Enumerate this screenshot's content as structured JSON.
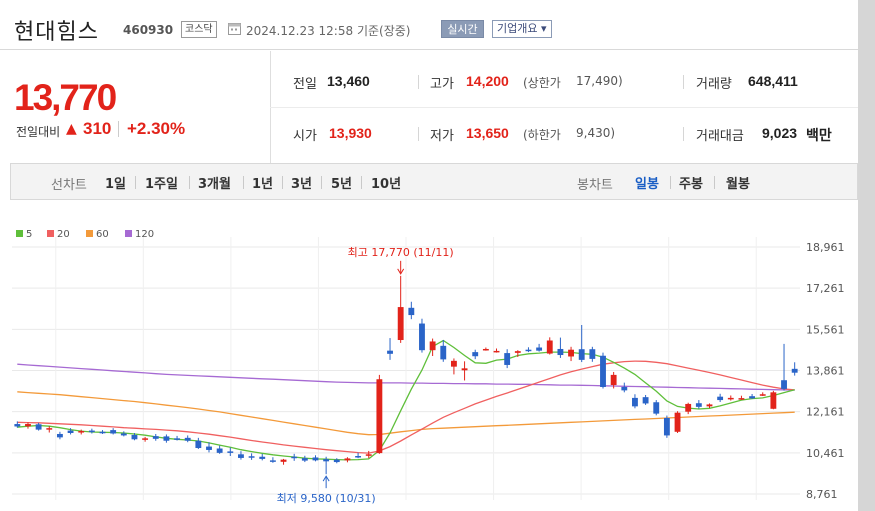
{
  "header": {
    "stock_name": "현대힘스",
    "stock_code": "460930",
    "market": "코스닥",
    "datetime": "2024.12.23 12:58",
    "basis": "기준(장중)",
    "realtime_label": "실시간",
    "overview_label": "기업개요 ▾"
  },
  "summary": {
    "price": "13,770",
    "change_label": "전일대비",
    "change_arrow": "▲",
    "change_value": "310",
    "change_rate": "+2.30%",
    "stats": {
      "prev_close_label": "전일",
      "prev_close": "13,460",
      "high_label": "고가",
      "high": "14,200",
      "upper_limit_label": "(상한가",
      "upper_limit": "17,490)",
      "volume_label": "거래량",
      "volume": "648,411",
      "open_label": "시가",
      "open": "13,930",
      "low_label": "저가",
      "low": "13,650",
      "lower_limit_label": "(하한가",
      "lower_limit": "9,430)",
      "amount_label": "거래대금",
      "amount": "9,023",
      "amount_unit": "백만"
    }
  },
  "toolbar": {
    "line_chart_label": "선차트",
    "periods": [
      "1일",
      "1주일",
      "3개월",
      "1년",
      "3년",
      "5년",
      "10년"
    ],
    "candle_label": "봉차트",
    "candle_periods": [
      "일봉",
      "주봉",
      "월봉"
    ],
    "active_candle": "일봉"
  },
  "colors": {
    "up": "#e2231a",
    "down": "#2a64c8",
    "ma5": "#5fbf3a",
    "ma20": "#f06060",
    "ma60": "#f39a3a",
    "ma120": "#a66ad3"
  },
  "chart_data": {
    "type": "candlestick",
    "legend": [
      {
        "name": "5",
        "color": "#5fbf3a"
      },
      {
        "name": "20",
        "color": "#f06060"
      },
      {
        "name": "60",
        "color": "#f39a3a"
      },
      {
        "name": "120",
        "color": "#a66ad3"
      }
    ],
    "y_ticks": [
      "18,961",
      "17,261",
      "15,561",
      "13,861",
      "12,161",
      "10,461",
      "8,761"
    ],
    "ylim": [
      8761,
      18961
    ],
    "annotations": {
      "high": "최고 17,770 (11/11)",
      "low": "최저 9,580 (10/31)"
    },
    "candles": [
      {
        "o": 11650,
        "h": 11760,
        "l": 11500,
        "c": 11550
      },
      {
        "o": 11560,
        "h": 11720,
        "l": 11460,
        "c": 11650
      },
      {
        "o": 11640,
        "h": 11700,
        "l": 11380,
        "c": 11420
      },
      {
        "o": 11420,
        "h": 11560,
        "l": 11300,
        "c": 11480
      },
      {
        "o": 11240,
        "h": 11330,
        "l": 11020,
        "c": 11100
      },
      {
        "o": 11380,
        "h": 11480,
        "l": 11220,
        "c": 11280
      },
      {
        "o": 11300,
        "h": 11420,
        "l": 11220,
        "c": 11360
      },
      {
        "o": 11380,
        "h": 11460,
        "l": 11260,
        "c": 11330
      },
      {
        "o": 11330,
        "h": 11400,
        "l": 11240,
        "c": 11280
      },
      {
        "o": 11400,
        "h": 11480,
        "l": 11220,
        "c": 11260
      },
      {
        "o": 11260,
        "h": 11350,
        "l": 11140,
        "c": 11180
      },
      {
        "o": 11200,
        "h": 11280,
        "l": 10980,
        "c": 11020
      },
      {
        "o": 11020,
        "h": 11120,
        "l": 10920,
        "c": 11060
      },
      {
        "o": 11150,
        "h": 11240,
        "l": 10960,
        "c": 11040
      },
      {
        "o": 11140,
        "h": 11220,
        "l": 10880,
        "c": 10960
      },
      {
        "o": 11060,
        "h": 11160,
        "l": 10970,
        "c": 11000
      },
      {
        "o": 11080,
        "h": 11180,
        "l": 10900,
        "c": 10960
      },
      {
        "o": 10960,
        "h": 11080,
        "l": 10620,
        "c": 10660
      },
      {
        "o": 10720,
        "h": 10900,
        "l": 10480,
        "c": 10580
      },
      {
        "o": 10640,
        "h": 10760,
        "l": 10420,
        "c": 10460
      },
      {
        "o": 10520,
        "h": 10680,
        "l": 10330,
        "c": 10460
      },
      {
        "o": 10400,
        "h": 10530,
        "l": 10180,
        "c": 10250
      },
      {
        "o": 10320,
        "h": 10440,
        "l": 10170,
        "c": 10260
      },
      {
        "o": 10300,
        "h": 10420,
        "l": 10150,
        "c": 10210
      },
      {
        "o": 10150,
        "h": 10280,
        "l": 10050,
        "c": 10100
      },
      {
        "o": 10090,
        "h": 10210,
        "l": 9970,
        "c": 10180
      },
      {
        "o": 10300,
        "h": 10420,
        "l": 10130,
        "c": 10240
      },
      {
        "o": 10240,
        "h": 10340,
        "l": 10080,
        "c": 10140
      },
      {
        "o": 10270,
        "h": 10360,
        "l": 10110,
        "c": 10150
      },
      {
        "o": 10200,
        "h": 10300,
        "l": 9580,
        "c": 10110
      },
      {
        "o": 10180,
        "h": 10240,
        "l": 10030,
        "c": 10080
      },
      {
        "o": 10150,
        "h": 10280,
        "l": 10070,
        "c": 10230
      },
      {
        "o": 10330,
        "h": 10470,
        "l": 10240,
        "c": 10300
      },
      {
        "o": 10370,
        "h": 10540,
        "l": 10240,
        "c": 10400
      },
      {
        "o": 10450,
        "h": 13680,
        "l": 10420,
        "c": 13500
      },
      {
        "o": 14680,
        "h": 15200,
        "l": 14300,
        "c": 14550
      },
      {
        "o": 15120,
        "h": 17770,
        "l": 15000,
        "c": 16480
      },
      {
        "o": 16450,
        "h": 16700,
        "l": 15980,
        "c": 16150
      },
      {
        "o": 15800,
        "h": 16000,
        "l": 14600,
        "c": 14700
      },
      {
        "o": 14700,
        "h": 15180,
        "l": 14460,
        "c": 15060
      },
      {
        "o": 14880,
        "h": 15120,
        "l": 14220,
        "c": 14320
      },
      {
        "o": 14020,
        "h": 14360,
        "l": 13700,
        "c": 14260
      },
      {
        "o": 13870,
        "h": 14240,
        "l": 13450,
        "c": 13950
      },
      {
        "o": 14620,
        "h": 14720,
        "l": 14330,
        "c": 14450
      },
      {
        "o": 14720,
        "h": 14810,
        "l": 14680,
        "c": 14750
      },
      {
        "o": 14660,
        "h": 14770,
        "l": 14600,
        "c": 14670
      },
      {
        "o": 14580,
        "h": 14740,
        "l": 13960,
        "c": 14090
      },
      {
        "o": 14590,
        "h": 14700,
        "l": 14420,
        "c": 14660
      },
      {
        "o": 14720,
        "h": 14820,
        "l": 14620,
        "c": 14660
      },
      {
        "o": 14810,
        "h": 14960,
        "l": 14640,
        "c": 14680
      },
      {
        "o": 14560,
        "h": 15230,
        "l": 14520,
        "c": 15100
      },
      {
        "o": 14750,
        "h": 15220,
        "l": 14380,
        "c": 14500
      },
      {
        "o": 14440,
        "h": 14840,
        "l": 14250,
        "c": 14720
      },
      {
        "o": 14740,
        "h": 15740,
        "l": 14210,
        "c": 14300
      },
      {
        "o": 14740,
        "h": 14840,
        "l": 14220,
        "c": 14340
      },
      {
        "o": 14470,
        "h": 14600,
        "l": 13120,
        "c": 13180
      },
      {
        "o": 13260,
        "h": 13800,
        "l": 13120,
        "c": 13680
      },
      {
        "o": 13180,
        "h": 13360,
        "l": 12960,
        "c": 13040
      },
      {
        "o": 12730,
        "h": 12880,
        "l": 12300,
        "c": 12380
      },
      {
        "o": 12760,
        "h": 12850,
        "l": 12440,
        "c": 12500
      },
      {
        "o": 12550,
        "h": 12640,
        "l": 12010,
        "c": 12080
      },
      {
        "o": 11900,
        "h": 12000,
        "l": 11080,
        "c": 11180
      },
      {
        "o": 11330,
        "h": 12180,
        "l": 11280,
        "c": 12120
      },
      {
        "o": 12160,
        "h": 12530,
        "l": 12060,
        "c": 12480
      },
      {
        "o": 12510,
        "h": 12640,
        "l": 12280,
        "c": 12360
      },
      {
        "o": 12380,
        "h": 12500,
        "l": 12310,
        "c": 12460
      },
      {
        "o": 12780,
        "h": 12900,
        "l": 12560,
        "c": 12640
      },
      {
        "o": 12700,
        "h": 12830,
        "l": 12620,
        "c": 12730
      },
      {
        "o": 12700,
        "h": 12820,
        "l": 12650,
        "c": 12720
      },
      {
        "o": 12800,
        "h": 12890,
        "l": 12690,
        "c": 12710
      },
      {
        "o": 12870,
        "h": 12960,
        "l": 12810,
        "c": 12880
      },
      {
        "o": 12280,
        "h": 13020,
        "l": 12260,
        "c": 12960
      },
      {
        "o": 13460,
        "h": 14960,
        "l": 13030,
        "c": 13100
      },
      {
        "o": 13930,
        "h": 14200,
        "l": 13650,
        "c": 13770
      }
    ],
    "ma5": [
      11520,
      11560,
      11590,
      11560,
      11500,
      11420,
      11360,
      11320,
      11310,
      11300,
      11280,
      11240,
      11190,
      11120,
      11060,
      11020,
      10990,
      10950,
      10870,
      10780,
      10690,
      10590,
      10510,
      10440,
      10380,
      10330,
      10290,
      10240,
      10210,
      10200,
      10180,
      10170,
      10180,
      10210,
      10560,
      11280,
      12200,
      13090,
      13880,
      14850,
      15100,
      14810,
      14480,
      14180,
      14160,
      14290,
      14330,
      14480,
      14550,
      14580,
      14620,
      14620,
      14610,
      14560,
      14530,
      14410,
      14200,
      13960,
      13700,
      13350,
      13010,
      12600,
      12380,
      12310,
      12270,
      12300,
      12400,
      12520,
      12640,
      12700,
      12730,
      12830,
      12950,
      13070
    ],
    "ma20": [
      11720,
      11710,
      11700,
      11680,
      11660,
      11640,
      11620,
      11590,
      11560,
      11530,
      11500,
      11480,
      11450,
      11430,
      11400,
      11370,
      11330,
      11280,
      11230,
      11170,
      11110,
      11040,
      10970,
      10910,
      10850,
      10790,
      10740,
      10690,
      10640,
      10590,
      10550,
      10510,
      10470,
      10450,
      10540,
      10720,
      10950,
      11200,
      11440,
      11690,
      11930,
      12120,
      12300,
      12480,
      12640,
      12790,
      12930,
      13080,
      13230,
      13380,
      13530,
      13680,
      13810,
      13920,
      14020,
      14120,
      14180,
      14230,
      14250,
      14240,
      14200,
      14140,
      14050,
      13960,
      13870,
      13780,
      13680,
      13570,
      13470,
      13360,
      13260,
      13170,
      13100,
      13060
    ],
    "ma60": [
      12980,
      12950,
      12920,
      12890,
      12860,
      12820,
      12780,
      12740,
      12700,
      12660,
      12620,
      12580,
      12530,
      12480,
      12430,
      12380,
      12330,
      12270,
      12210,
      12150,
      12080,
      12010,
      11940,
      11870,
      11800,
      11730,
      11660,
      11590,
      11520,
      11450,
      11380,
      11310,
      11250,
      11210,
      11220,
      11270,
      11330,
      11380,
      11430,
      11460,
      11480,
      11500,
      11520,
      11540,
      11560,
      11580,
      11600,
      11620,
      11640,
      11660,
      11680,
      11700,
      11720,
      11740,
      11760,
      11780,
      11800,
      11820,
      11840,
      11860,
      11880,
      11900,
      11920,
      11940,
      11960,
      11980,
      12000,
      12020,
      12040,
      12060,
      12080,
      12100,
      12120,
      12140
    ],
    "ma120": [
      14120,
      14090,
      14060,
      14030,
      14000,
      13970,
      13940,
      13910,
      13880,
      13850,
      13820,
      13790,
      13760,
      13730,
      13700,
      13680,
      13660,
      13640,
      13620,
      13600,
      13580,
      13560,
      13540,
      13520,
      13500,
      13480,
      13460,
      13440,
      13420,
      13400,
      13380,
      13370,
      13360,
      13350,
      13350,
      13350,
      13350,
      13340,
      13340,
      13330,
      13330,
      13320,
      13320,
      13310,
      13310,
      13300,
      13300,
      13290,
      13290,
      13280,
      13270,
      13260,
      13260,
      13250,
      13240,
      13230,
      13220,
      13210,
      13200,
      13190,
      13180,
      13170,
      13160,
      13150,
      13140,
      13130,
      13120,
      13110,
      13100,
      13090,
      13080,
      13070,
      13060,
      13050
    ]
  }
}
